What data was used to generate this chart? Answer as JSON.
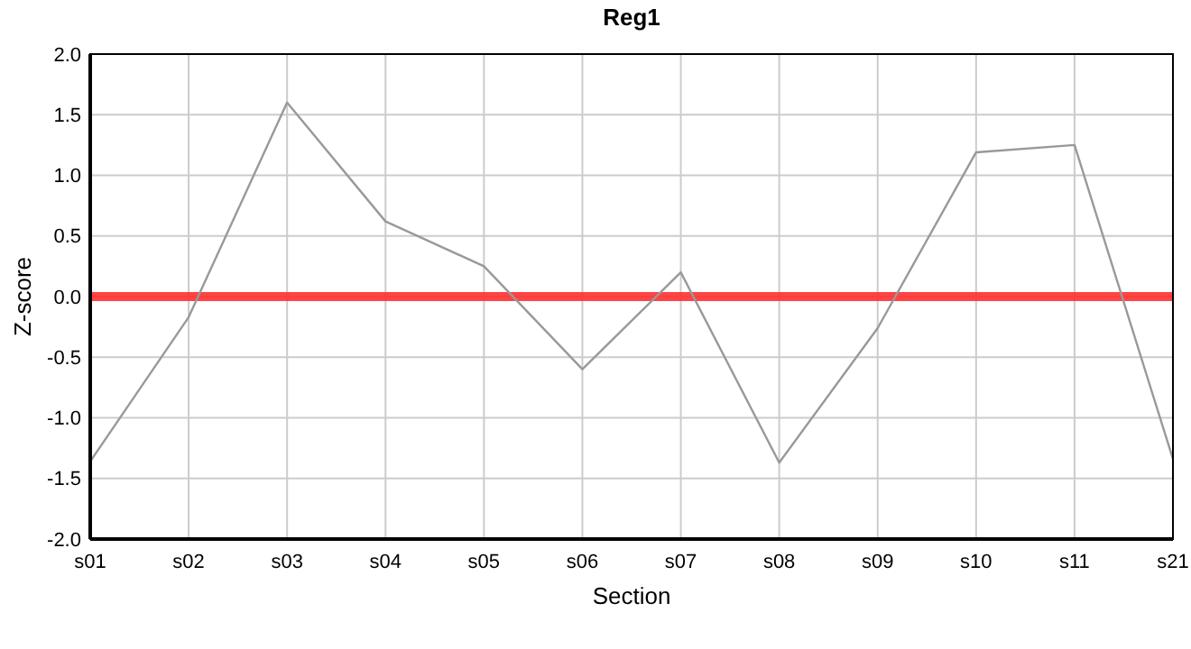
{
  "chart_data": {
    "type": "line",
    "title": "Reg1",
    "xlabel": "Section",
    "ylabel": "Z-score",
    "categories": [
      "s01",
      "s02",
      "s03",
      "s04",
      "s05",
      "s06",
      "s07",
      "s08",
      "s09",
      "s10",
      "s11",
      "s21"
    ],
    "series": [
      {
        "color": "#999999",
        "values": [
          -1.36,
          -0.17,
          1.6,
          0.62,
          0.25,
          -0.6,
          0.2,
          -1.37,
          -0.26,
          1.19,
          1.25,
          -1.34
        ]
      }
    ],
    "ylim": [
      -2,
      2
    ],
    "yticks": [
      {
        "value": -2,
        "label": "-2.0"
      },
      {
        "value": -1.5,
        "label": "-1.5"
      },
      {
        "value": -1,
        "label": "-1.0"
      },
      {
        "value": -0.5,
        "label": "-0.5"
      },
      {
        "value": 0,
        "label": "0.0"
      },
      {
        "value": 0.5,
        "label": "0.5"
      },
      {
        "value": 1,
        "label": "1.0"
      },
      {
        "value": 1.5,
        "label": "1.5"
      },
      {
        "value": 2,
        "label": "2.0"
      }
    ],
    "ref_lines": [
      {
        "axis": "y",
        "value": 0,
        "color": "#ff3030"
      }
    ],
    "grid": true,
    "marker": "none",
    "line_style": "solid"
  }
}
